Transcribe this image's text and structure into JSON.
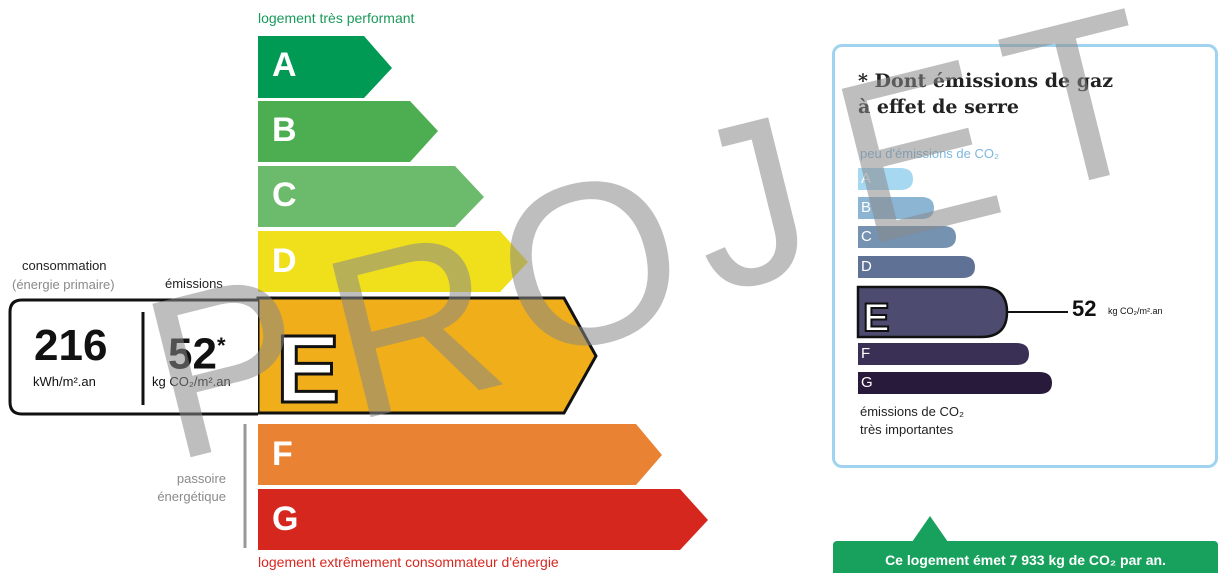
{
  "label_top": "logement très performant",
  "label_bottom": "logement extrêmement consommateur d'énergie",
  "energy_classes": [
    {
      "letter": "A",
      "color": "#009a54"
    },
    {
      "letter": "B",
      "color": "#4cae50"
    },
    {
      "letter": "C",
      "color": "#6cba6c"
    },
    {
      "letter": "D",
      "color": "#f0e01b"
    },
    {
      "letter": "E",
      "color": "#f0ae1a"
    },
    {
      "letter": "F",
      "color": "#ea8233"
    },
    {
      "letter": "G",
      "color": "#d6271f"
    }
  ],
  "current_class": "E",
  "consumption": {
    "title": "consommation",
    "subtitle": "(énergie primaire)",
    "value": "216",
    "unit": "kWh/m².an"
  },
  "emissions": {
    "title": "émissions",
    "value": "52",
    "asterisk": "*",
    "unit": "kg CO₂/m².an"
  },
  "passoire": {
    "line1": "passoire",
    "line2": "énergétique"
  },
  "ges_panel": {
    "title_line1": "* Dont émissions de gaz",
    "title_line2": "à effet de serre",
    "top_label": "peu d'émissions de CO₂",
    "bottom_line1": "émissions de CO₂",
    "bottom_line2": "très importantes",
    "classes": [
      {
        "letter": "A",
        "color": "#a6d8f2"
      },
      {
        "letter": "B",
        "color": "#8cb4d3"
      },
      {
        "letter": "C",
        "color": "#7692b1"
      },
      {
        "letter": "D",
        "color": "#5f7195"
      },
      {
        "letter": "E",
        "color": "#4d4c70"
      },
      {
        "letter": "F",
        "color": "#3a2f54"
      },
      {
        "letter": "G",
        "color": "#281a3a"
      }
    ],
    "current_class": "E",
    "value": "52",
    "unit": "kg CO₂/m².an"
  },
  "banner": "Ce logement émet 7 933 kg de CO₂ par an.",
  "watermark": "PROJET"
}
